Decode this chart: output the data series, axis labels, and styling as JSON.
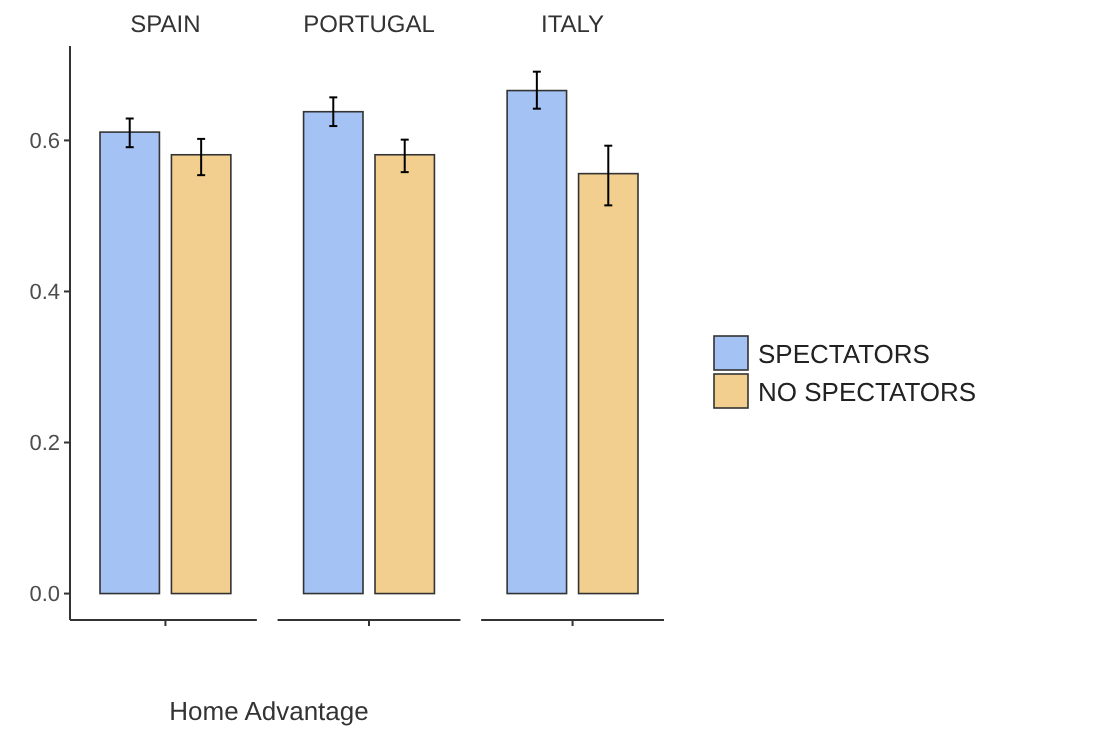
{
  "chart_data": {
    "type": "bar",
    "xlabel": "Home Advantage",
    "categories": [
      "SPAIN",
      "PORTUGAL",
      "ITALY"
    ],
    "ylim": [
      -0.035,
      0.725
    ],
    "yticks": [
      {
        "value": 0,
        "label": "0.0"
      },
      0.2,
      0.4,
      0.6
    ],
    "legend": "right",
    "series": [
      {
        "name": "SPECTATORS",
        "color": "#a4c2f4",
        "values": [
          0.611,
          0.638,
          0.666
        ],
        "errors": [
          [
            0.591,
            0.629
          ],
          [
            0.619,
            0.657
          ],
          [
            0.642,
            0.691
          ]
        ]
      },
      {
        "name": "NO SPECTATORS",
        "color": "#f2cf8e",
        "values": [
          0.581,
          0.581,
          0.556
        ],
        "errors": [
          [
            0.554,
            0.602
          ],
          [
            0.558,
            0.601
          ],
          [
            0.514,
            0.593
          ]
        ]
      }
    ]
  }
}
